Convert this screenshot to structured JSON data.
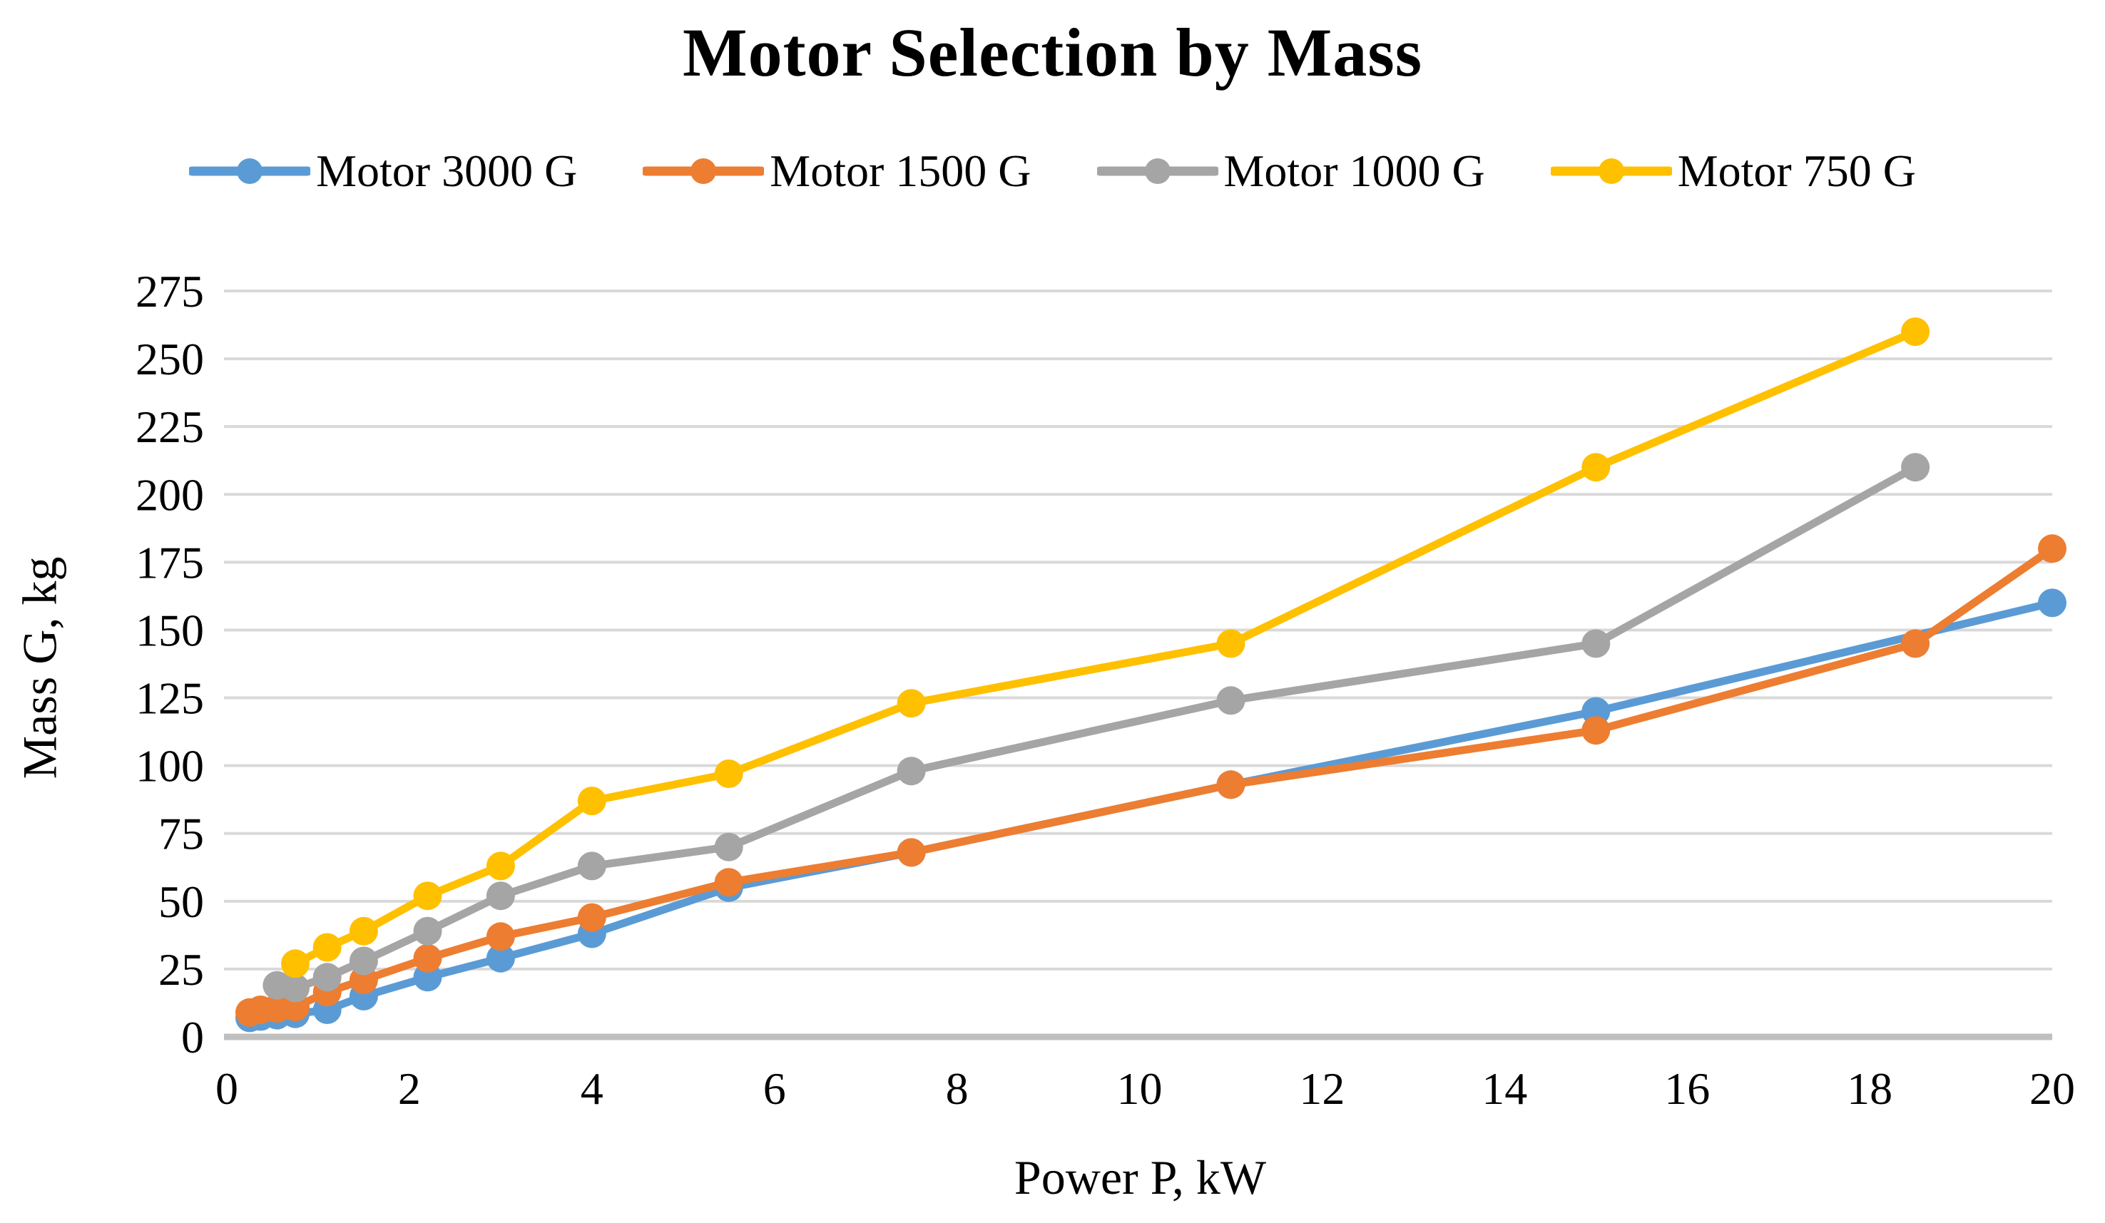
{
  "title": "Motor Selection by Mass",
  "chart_data": {
    "type": "line",
    "title": "Motor Selection by Mass",
    "xlabel": "Power P, kW",
    "ylabel": "Mass G, kg",
    "xlim": [
      0,
      20
    ],
    "ylim": [
      0,
      275
    ],
    "x_ticks": [
      0,
      2,
      4,
      6,
      8,
      10,
      12,
      14,
      16,
      18,
      20
    ],
    "y_ticks": [
      0,
      25,
      50,
      75,
      100,
      125,
      150,
      175,
      200,
      225,
      250,
      275
    ],
    "grid": "horizontal",
    "gridline_color": "#D9D9D9",
    "axis_line_color": "#BFBFBF",
    "legend_position": "top",
    "series": [
      {
        "name": "Motor 3000 G",
        "color": "#5B9BD5",
        "points": [
          [
            0.25,
            7
          ],
          [
            0.37,
            7.5
          ],
          [
            0.55,
            8
          ],
          [
            0.75,
            8.5
          ],
          [
            1.1,
            10
          ],
          [
            1.5,
            15
          ],
          [
            2.2,
            22
          ],
          [
            3,
            29
          ],
          [
            4,
            38
          ],
          [
            5.5,
            55
          ],
          [
            7.5,
            68
          ],
          [
            11,
            93
          ],
          [
            15,
            120
          ],
          [
            20,
            160
          ]
        ]
      },
      {
        "name": "Motor 1500 G",
        "color": "#ED7D31",
        "points": [
          [
            0.25,
            9
          ],
          [
            0.37,
            10
          ],
          [
            0.55,
            10.5
          ],
          [
            0.75,
            11
          ],
          [
            1.1,
            16.5
          ],
          [
            1.5,
            21
          ],
          [
            2.2,
            29
          ],
          [
            3,
            37
          ],
          [
            4,
            44
          ],
          [
            5.5,
            57
          ],
          [
            7.5,
            68
          ],
          [
            11,
            93
          ],
          [
            15,
            113
          ],
          [
            18.5,
            145
          ],
          [
            20,
            180
          ]
        ]
      },
      {
        "name": "Motor 1000 G",
        "color": "#A5A5A5",
        "points": [
          [
            0.55,
            19
          ],
          [
            0.75,
            18
          ],
          [
            1.1,
            22
          ],
          [
            1.5,
            28
          ],
          [
            2.2,
            39
          ],
          [
            3,
            52
          ],
          [
            4,
            63
          ],
          [
            5.5,
            70
          ],
          [
            7.5,
            98
          ],
          [
            11,
            124
          ],
          [
            15,
            145
          ],
          [
            18.5,
            210
          ]
        ]
      },
      {
        "name": "Motor 750 G",
        "color": "#FFC000",
        "points": [
          [
            0.75,
            27
          ],
          [
            1.1,
            33
          ],
          [
            1.5,
            39
          ],
          [
            2.2,
            52
          ],
          [
            3,
            63
          ],
          [
            4,
            87
          ],
          [
            5.5,
            97
          ],
          [
            7.5,
            123
          ],
          [
            11,
            145
          ],
          [
            15,
            210
          ],
          [
            18.5,
            260
          ]
        ]
      }
    ]
  }
}
